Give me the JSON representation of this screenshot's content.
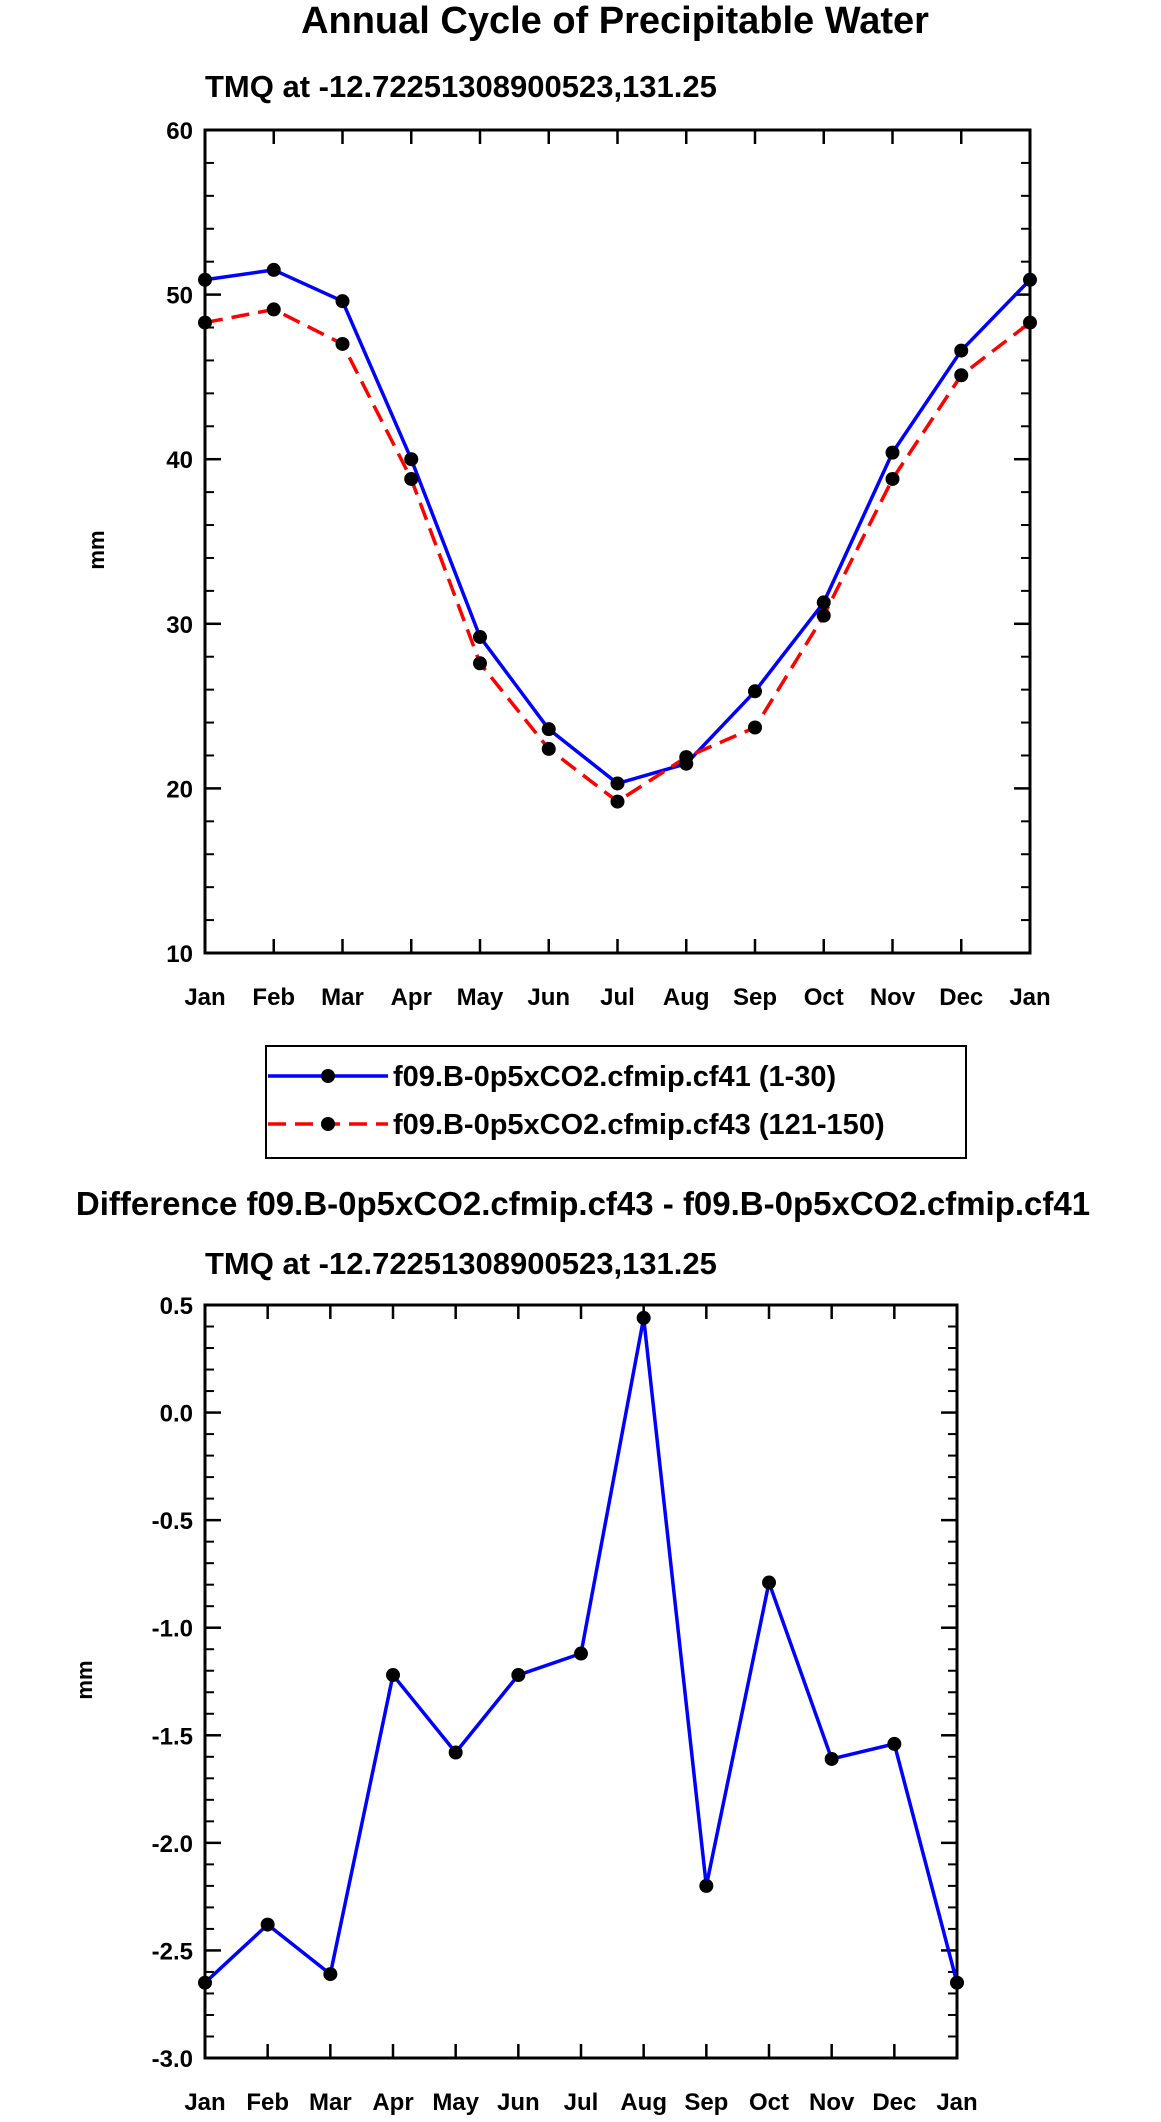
{
  "chart_data": [
    {
      "type": "line",
      "title": "Annual Cycle of Precipitable Water",
      "subtitle": "TMQ at -12.72251308900523,131.25",
      "xlabel": "",
      "ylabel": "mm",
      "categories": [
        "Jan",
        "Feb",
        "Mar",
        "Apr",
        "May",
        "Jun",
        "Jul",
        "Aug",
        "Sep",
        "Oct",
        "Nov",
        "Dec",
        "Jan"
      ],
      "ylim": [
        10,
        60
      ],
      "yticks": [
        10,
        20,
        30,
        40,
        50,
        60
      ],
      "yticklabels": [
        "10",
        "20",
        "30",
        "40",
        "50",
        "60"
      ],
      "grid": false,
      "legend_position": "below",
      "series": [
        {
          "name": "f09.B-0p5xCO2.cfmip.cf41 (1-30)",
          "color": "#0000ff",
          "dash": "solid",
          "values": [
            50.9,
            51.5,
            49.6,
            40.0,
            29.2,
            23.6,
            20.3,
            21.5,
            25.9,
            31.3,
            40.4,
            46.6,
            50.9
          ]
        },
        {
          "name": "f09.B-0p5xCO2.cfmip.cf43 (121-150)",
          "color": "#ff0000",
          "dash": "dashed",
          "values": [
            48.3,
            49.1,
            47.0,
            38.8,
            27.6,
            22.4,
            19.2,
            21.9,
            23.7,
            30.5,
            38.8,
            45.1,
            48.3
          ]
        }
      ]
    },
    {
      "type": "line",
      "title": "Difference f09.B-0p5xCO2.cfmip.cf43 - f09.B-0p5xCO2.cfmip.cf41",
      "subtitle": "TMQ at -12.72251308900523,131.25",
      "xlabel": "",
      "ylabel": "mm",
      "categories": [
        "Jan",
        "Feb",
        "Mar",
        "Apr",
        "May",
        "Jun",
        "Jul",
        "Aug",
        "Sep",
        "Oct",
        "Nov",
        "Dec",
        "Jan"
      ],
      "ylim": [
        -3.0,
        0.5
      ],
      "yticks": [
        -3.0,
        -2.5,
        -2.0,
        -1.5,
        -1.0,
        -0.5,
        0.0,
        0.5
      ],
      "yticklabels": [
        "-3.0",
        "-2.5",
        "-2.0",
        "-1.5",
        "-1.0",
        "-0.5",
        "0.0",
        "0.5"
      ],
      "grid": false,
      "series": [
        {
          "name": "Difference",
          "color": "#0000ff",
          "dash": "solid",
          "values": [
            -2.65,
            -2.38,
            -2.61,
            -1.22,
            -1.58,
            -1.22,
            -1.12,
            0.44,
            -2.2,
            -0.79,
            -1.61,
            -1.54,
            -2.65
          ]
        }
      ]
    }
  ]
}
